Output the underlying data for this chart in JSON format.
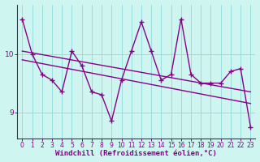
{
  "x": [
    0,
    1,
    2,
    3,
    4,
    5,
    6,
    7,
    8,
    9,
    10,
    11,
    12,
    13,
    14,
    15,
    16,
    17,
    18,
    19,
    20,
    21,
    22,
    23
  ],
  "y_main": [
    10.6,
    10.0,
    9.65,
    9.55,
    9.35,
    10.05,
    9.8,
    9.35,
    9.3,
    8.85,
    9.55,
    10.05,
    10.55,
    10.05,
    9.55,
    9.65,
    10.6,
    9.65,
    9.5,
    9.5,
    9.5,
    9.7,
    9.75,
    8.75
  ],
  "trend1_x": [
    0,
    23
  ],
  "trend1_y": [
    10.05,
    9.35
  ],
  "trend2_x": [
    0,
    23
  ],
  "trend2_y": [
    9.9,
    9.15
  ],
  "line_color": "#880088",
  "background_color": "#cef5f0",
  "grid_color": "#99dddd",
  "xlabel": "Windchill (Refroidissement éolien,°C)",
  "ylabel_ticks": [
    9,
    10
  ],
  "xlim": [
    -0.5,
    23.5
  ],
  "ylim": [
    8.55,
    10.85
  ],
  "xlabel_fontsize": 6.5,
  "tick_fontsize": 6.5,
  "line_width": 1.0,
  "marker_size": 4,
  "marker_ew": 1.0
}
